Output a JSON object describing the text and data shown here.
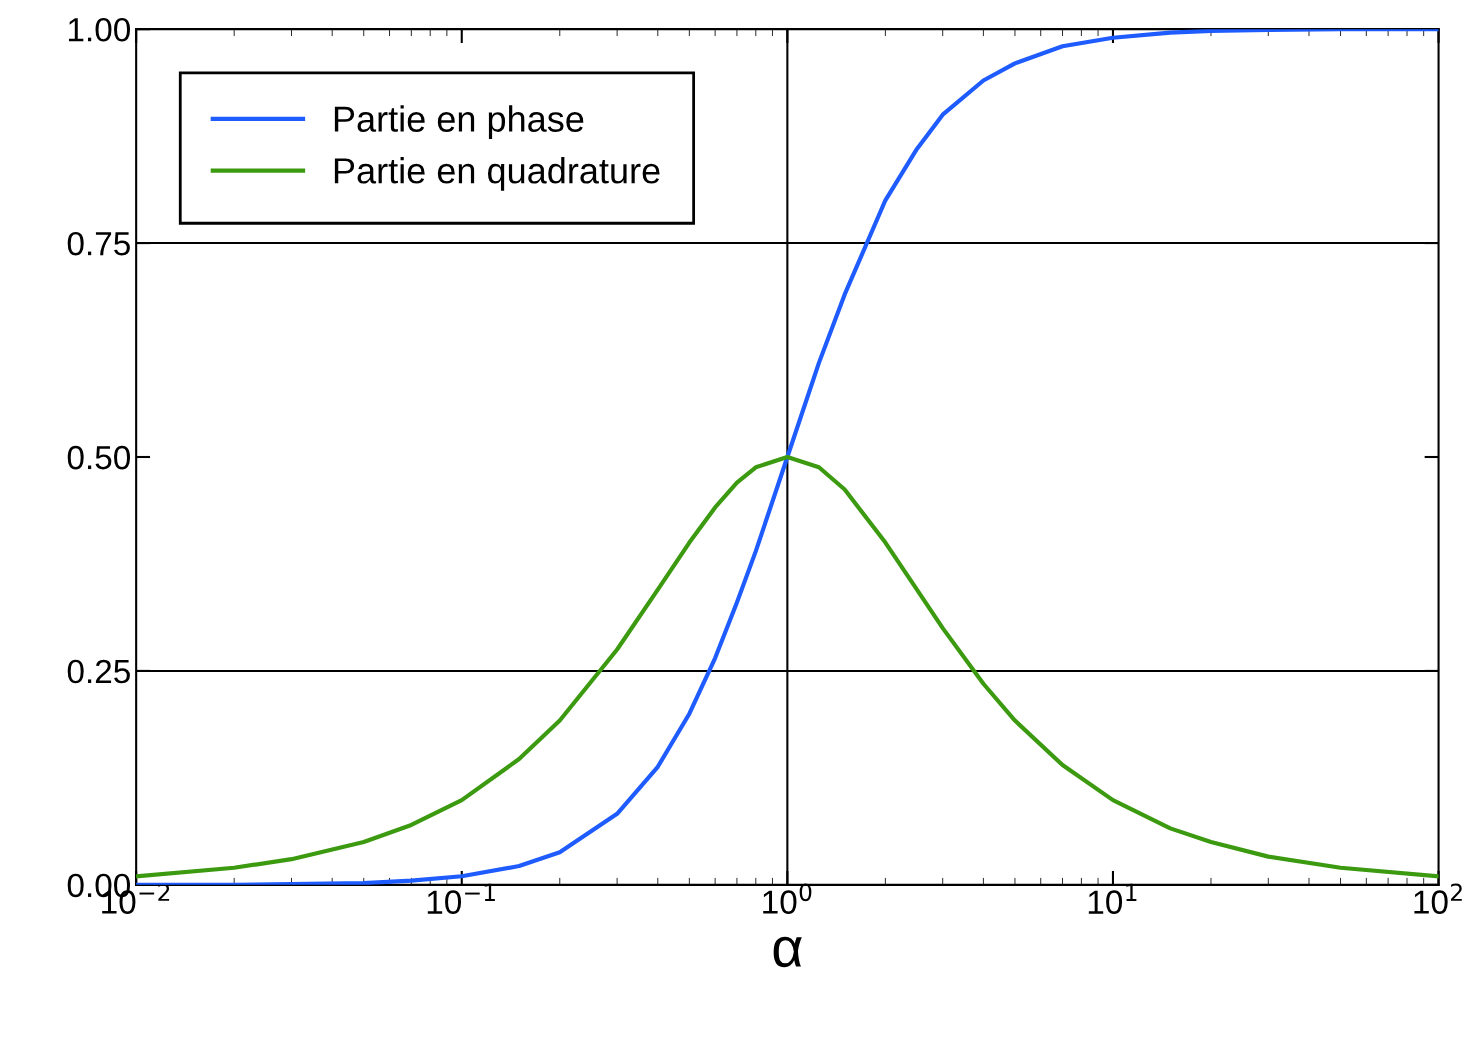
{
  "chart_data": {
    "type": "line",
    "xlabel": "α",
    "log": "x",
    "x": [
      0.01,
      0.02,
      0.03,
      0.05,
      0.07,
      0.1,
      0.15,
      0.2,
      0.3,
      0.4,
      0.5,
      0.6,
      0.7,
      0.8,
      1,
      1.25,
      1.5,
      2,
      2.5,
      3,
      4,
      5,
      7,
      10,
      15,
      20,
      30,
      50,
      100
    ],
    "series": [
      {
        "name": "Partie en phase",
        "color": "#1f5cff",
        "values": [
          0.0,
          0.0,
          0.001,
          0.002,
          0.005,
          0.01,
          0.022,
          0.038,
          0.083,
          0.138,
          0.2,
          0.265,
          0.33,
          0.39,
          0.5,
          0.61,
          0.69,
          0.8,
          0.86,
          0.9,
          0.94,
          0.96,
          0.98,
          0.99,
          0.996,
          0.998,
          0.999,
          1.0,
          1.0
        ]
      },
      {
        "name": "Partie en quadrature",
        "color": "#3c9a10",
        "values": [
          0.01,
          0.02,
          0.03,
          0.05,
          0.07,
          0.099,
          0.147,
          0.192,
          0.275,
          0.345,
          0.4,
          0.441,
          0.47,
          0.488,
          0.5,
          0.488,
          0.462,
          0.4,
          0.345,
          0.3,
          0.235,
          0.192,
          0.14,
          0.099,
          0.066,
          0.05,
          0.033,
          0.02,
          0.01
        ]
      }
    ],
    "xlim": [
      0.01,
      100
    ],
    "ylim": [
      0,
      1
    ],
    "xticks": [
      {
        "value": 0.01,
        "label": "10$^{−2}$"
      },
      {
        "value": 0.1,
        "label": "10$^{−1}$"
      },
      {
        "value": 1,
        "label": "10$^{0}$"
      },
      {
        "value": 10,
        "label": "10$^{1}$"
      },
      {
        "value": 100,
        "label": "10$^{2}$"
      }
    ],
    "yticks": [
      {
        "value": 0,
        "label": "0.00"
      },
      {
        "value": 0.25,
        "label": "0.25"
      },
      {
        "value": 0.5,
        "label": "0.50"
      },
      {
        "value": 0.75,
        "label": "0.75"
      },
      {
        "value": 1,
        "label": "1.00"
      }
    ],
    "ref_lines": [
      {
        "axis": "y",
        "value": 0.25,
        "color": "#000000"
      },
      {
        "axis": "y",
        "value": 0.75,
        "color": "#000000"
      },
      {
        "axis": "x",
        "value": 1,
        "color": "#000000"
      }
    ],
    "legend": "top left",
    "grid": false
  }
}
